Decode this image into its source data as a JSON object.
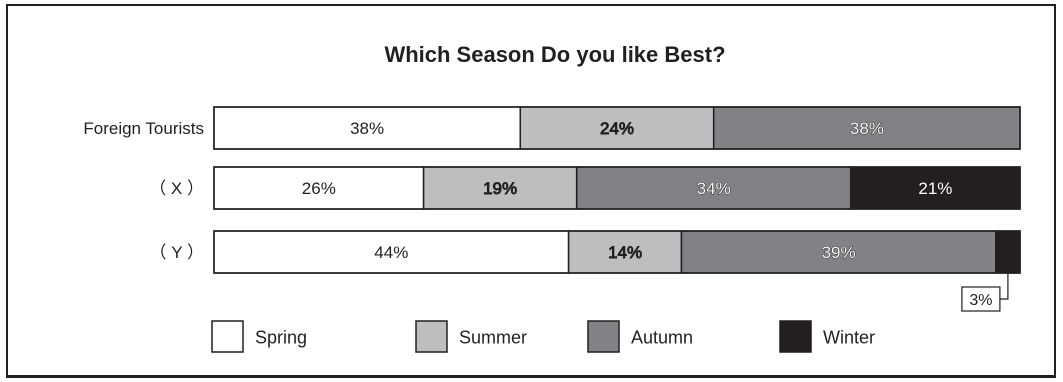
{
  "chart_data": {
    "type": "bar",
    "orientation": "horizontal",
    "stacked": true,
    "normalized": true,
    "title": "Which Season Do you like Best?",
    "categories": [
      "Foreign Tourists",
      "( X )",
      "( Y )"
    ],
    "category_labels": [
      "Foreign Tourists",
      "（ X ）",
      "（ Y ）"
    ],
    "series": [
      {
        "name": "Spring",
        "color": "#ffffff",
        "text_color": "#231f20",
        "outlined_label": false,
        "values": [
          38,
          26,
          44
        ],
        "labels": [
          "38%",
          "26%",
          "44%"
        ]
      },
      {
        "name": "Summer",
        "color": "#bcbec0",
        "text_color": "#231f20",
        "outlined_label": true,
        "values": [
          24,
          19,
          14
        ],
        "labels": [
          "24%",
          "19%",
          "14%"
        ]
      },
      {
        "name": "Autumn",
        "color": "#808285",
        "text_color": "#ffffff",
        "outlined_label": true,
        "values": [
          38,
          34,
          39
        ],
        "labels": [
          "38%",
          "34%",
          "39%"
        ]
      },
      {
        "name": "Winter",
        "color": "#231f20",
        "text_color": "#ffffff",
        "outlined_label": false,
        "values": [
          0,
          21,
          3
        ],
        "labels": [
          "",
          "21%",
          ""
        ]
      }
    ],
    "callouts": [
      {
        "category_index": 2,
        "series_index": 3,
        "text": "3%"
      }
    ],
    "xlim": [
      0,
      100
    ],
    "grid": false,
    "legend_position": "bottom"
  }
}
